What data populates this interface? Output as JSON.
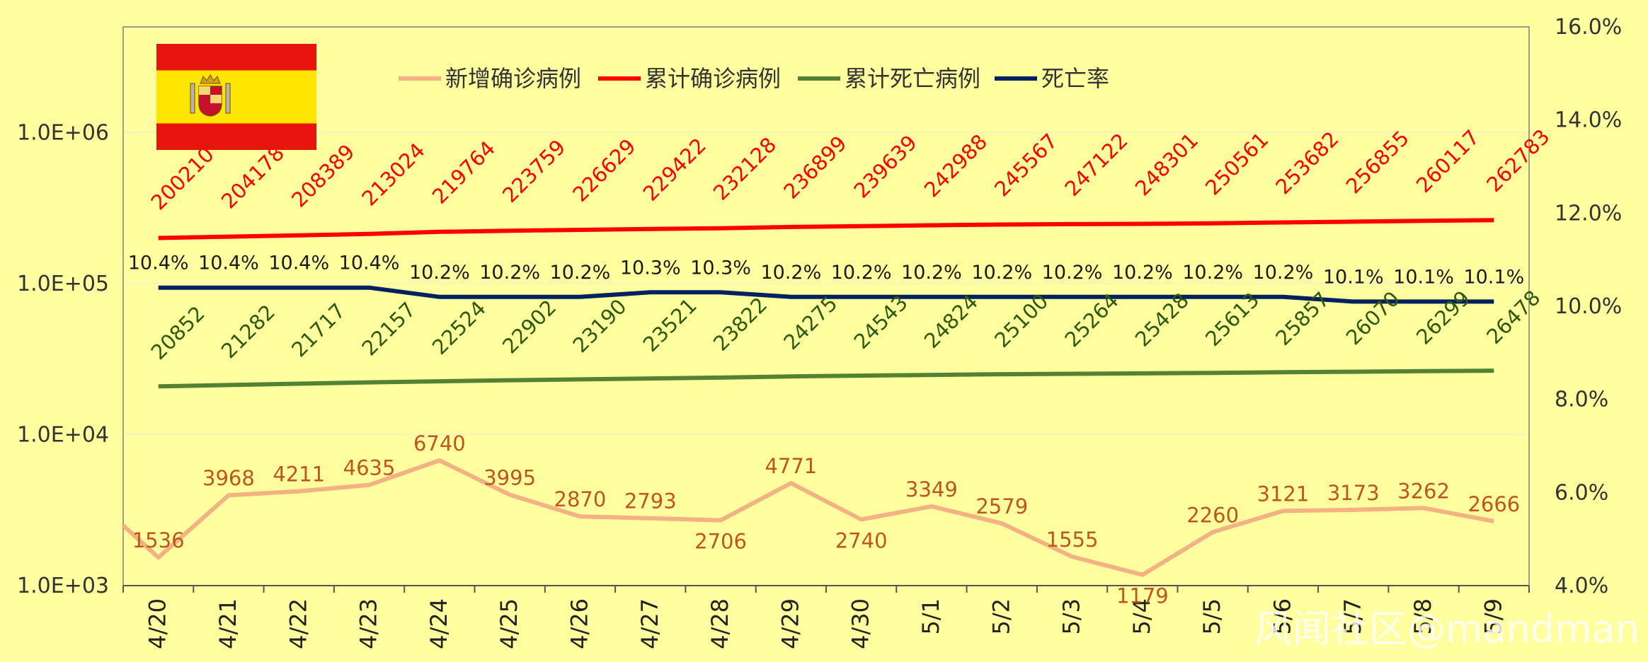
{
  "chart_data": {
    "type": "line",
    "title": "",
    "categories": [
      "4/20",
      "4/21",
      "4/22",
      "4/23",
      "4/24",
      "4/25",
      "4/26",
      "4/27",
      "4/28",
      "4/29",
      "4/30",
      "5/1",
      "5/2",
      "5/3",
      "5/4",
      "5/5",
      "5/6",
      "5/7",
      "5/8",
      "5/9"
    ],
    "left_axis": {
      "scale": "log",
      "range": [
        1000,
        5000000
      ],
      "ticks": [
        1000,
        10000,
        100000,
        1000000
      ],
      "tick_labels": [
        "1.0E+03",
        "1.0E+04",
        "1.0E+05",
        "1.0E+06"
      ]
    },
    "right_axis": {
      "scale": "linear",
      "range": [
        4.0,
        16.0
      ],
      "ticks": [
        4,
        6,
        8,
        10,
        12,
        14,
        16
      ],
      "tick_labels": [
        "4.0%",
        "6.0%",
        "8.0%",
        "10.0%",
        "12.0%",
        "14.0%",
        "16.0%"
      ]
    },
    "grid": true,
    "legend_position": "top-center",
    "series": [
      {
        "name": "新增确诊病例",
        "axis": "left",
        "color": "#F4B183",
        "values": [
          1536,
          3968,
          4211,
          4635,
          6740,
          3995,
          2870,
          2793,
          2706,
          4771,
          2740,
          3349,
          2579,
          1555,
          1179,
          2260,
          3121,
          3173,
          3262,
          2666
        ],
        "labels": [
          "1536",
          "3968",
          "4211",
          "4635",
          "6740",
          "3995",
          "2870",
          "2793",
          "2706",
          "4771",
          "2740",
          "3349",
          "2579",
          "1555",
          "1179",
          "2260",
          "3121",
          "3173",
          "3262",
          "2666"
        ]
      },
      {
        "name": "累计确诊病例",
        "axis": "left",
        "color": "#FF0000",
        "values": [
          200210,
          204178,
          208389,
          213024,
          219764,
          223759,
          226629,
          229422,
          232128,
          236899,
          239639,
          242988,
          245567,
          247122,
          248301,
          250561,
          253682,
          256855,
          260117,
          262783
        ],
        "labels": [
          "200210",
          "204178",
          "208389",
          "213024",
          "219764",
          "223759",
          "226629",
          "229422",
          "232128",
          "236899",
          "239639",
          "242988",
          "245567",
          "247122",
          "248301",
          "250561",
          "253682",
          "256855",
          "260117",
          "262783"
        ]
      },
      {
        "name": "累计死亡病例",
        "axis": "left",
        "color": "#548235",
        "values": [
          20852,
          21282,
          21717,
          22157,
          22524,
          22902,
          23190,
          23521,
          23822,
          24275,
          24543,
          24824,
          25100,
          25264,
          25428,
          25613,
          25857,
          26070,
          26299,
          26478
        ],
        "labels": [
          "20852",
          "21282",
          "21717",
          "22157",
          "22524",
          "22902",
          "23190",
          "23521",
          "23822",
          "24275",
          "24543",
          "24824",
          "25100",
          "25264",
          "25428",
          "25613",
          "25857",
          "26070",
          "26299",
          "26478"
        ]
      },
      {
        "name": "死亡率",
        "axis": "right",
        "color": "#002060",
        "values": [
          10.4,
          10.4,
          10.4,
          10.4,
          10.2,
          10.2,
          10.2,
          10.3,
          10.3,
          10.2,
          10.2,
          10.2,
          10.2,
          10.2,
          10.2,
          10.2,
          10.2,
          10.1,
          10.1,
          10.1
        ],
        "labels": [
          "10.4%",
          "10.4%",
          "10.4%",
          "10.4%",
          "10.2%",
          "10.2%",
          "10.2%",
          "10.3%",
          "10.3%",
          "10.2%",
          "10.2%",
          "10.2%",
          "10.2%",
          "10.2%",
          "10.2%",
          "10.2%",
          "10.2%",
          "10.1%",
          "10.1%",
          "10.1%"
        ]
      }
    ]
  },
  "flag": {
    "colors": {
      "red": "#E8150E",
      "yellow": "#FFE600"
    }
  },
  "watermark": "风闻社区@mandman",
  "colors": {
    "background": "#FFFF9F",
    "axis": "#555555",
    "grid": "#F2F2C4"
  }
}
